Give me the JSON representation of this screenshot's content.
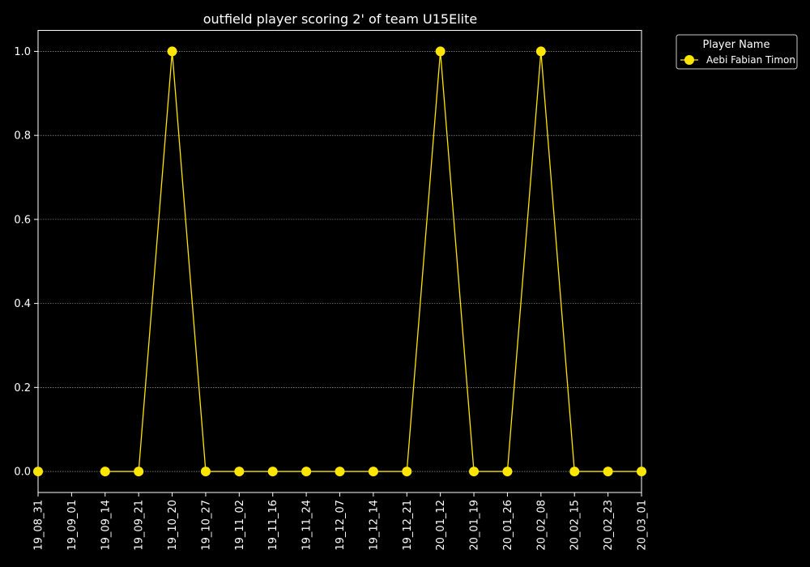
{
  "chart_data": {
    "type": "line",
    "title": "outfield player scoring 2' of team U15Elite",
    "xlabel": "",
    "ylabel": "",
    "x": [
      "19_08_31",
      "19_09_01",
      "19_09_14",
      "19_09_21",
      "19_10_20",
      "19_10_27",
      "19_11_02",
      "19_11_16",
      "19_11_24",
      "19_12_07",
      "19_12_14",
      "19_12_21",
      "20_01_12",
      "20_01_19",
      "20_01_26",
      "20_02_08",
      "20_02_15",
      "20_02_23",
      "20_03_01"
    ],
    "series": [
      {
        "name": "Aebi Fabian Timon",
        "color": "#ffe600",
        "values": [
          0,
          null,
          0,
          0,
          1,
          0,
          0,
          0,
          0,
          0,
          0,
          0,
          1,
          0,
          0,
          1,
          0,
          0,
          0
        ]
      }
    ],
    "yticks": [
      "0.0",
      "0.2",
      "0.4",
      "0.6",
      "0.8",
      "1.0"
    ],
    "ylim": [
      -0.05,
      1.05
    ],
    "grid": "y-dotted",
    "legend": {
      "title": "Player Name",
      "placement": "outside-top-right"
    },
    "background": "#000000",
    "axis_color": "#ffffff"
  }
}
